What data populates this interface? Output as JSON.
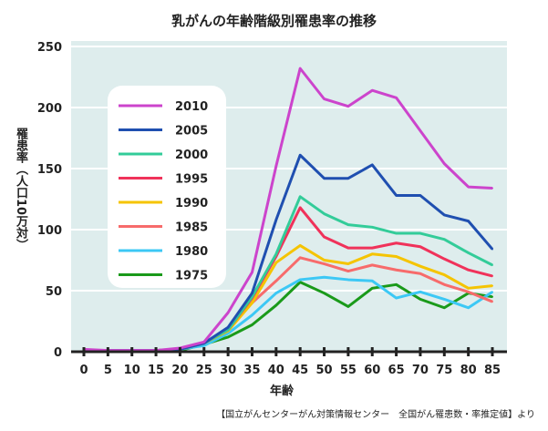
{
  "chart_data": {
    "type": "line",
    "title": "乳がんの年齢階級別罹患率の推移",
    "ylabel": "罹患率（人口10万対）",
    "xlabel": "年齢",
    "source": "【国立がんセンターがん対策情報センター　全国がん罹患数・率推定値】より",
    "x": [
      0,
      5,
      10,
      15,
      20,
      25,
      30,
      35,
      40,
      45,
      50,
      55,
      60,
      65,
      70,
      75,
      80,
      85
    ],
    "ylim": [
      0,
      250
    ],
    "yticks": [
      0,
      50,
      100,
      150,
      200,
      250
    ],
    "grid": true,
    "legend_position": "top-left",
    "background": "#deeded",
    "series": [
      {
        "name": "2010",
        "color": "#cc44cc",
        "values": [
          2,
          1,
          1,
          1,
          3,
          8,
          32,
          65,
          152,
          232,
          207,
          201,
          214,
          208,
          181,
          154,
          135,
          134
        ]
      },
      {
        "name": "2005",
        "color": "#1f4fb0",
        "values": [
          1,
          1,
          1,
          1,
          2,
          7,
          20,
          48,
          108,
          161,
          142,
          142,
          153,
          128,
          128,
          112,
          107,
          84
        ]
      },
      {
        "name": "2000",
        "color": "#33cc99",
        "values": [
          1,
          1,
          1,
          1,
          2,
          7,
          18,
          45,
          80,
          127,
          113,
          104,
          102,
          97,
          97,
          92,
          81,
          71
        ]
      },
      {
        "name": "1995",
        "color": "#f0325a",
        "values": [
          1,
          1,
          1,
          1,
          2,
          7,
          18,
          44,
          78,
          118,
          94,
          85,
          85,
          89,
          86,
          76,
          67,
          62
        ]
      },
      {
        "name": "1990",
        "color": "#f5c400",
        "values": [
          1,
          1,
          1,
          1,
          2,
          7,
          17,
          40,
          73,
          87,
          75,
          72,
          80,
          78,
          70,
          63,
          52,
          54
        ]
      },
      {
        "name": "1985",
        "color": "#f76b6b",
        "values": [
          1,
          1,
          1,
          1,
          2,
          7,
          18,
          40,
          58,
          77,
          72,
          66,
          71,
          67,
          64,
          55,
          49,
          41
        ]
      },
      {
        "name": "1980",
        "color": "#3cc8f5",
        "values": [
          0,
          1,
          1,
          1,
          2,
          5,
          15,
          30,
          48,
          59,
          61,
          59,
          58,
          44,
          49,
          43,
          36,
          49
        ]
      },
      {
        "name": "1975",
        "color": "#1a9a1a",
        "values": [
          0,
          0,
          0,
          0,
          1,
          6,
          12,
          22,
          38,
          57,
          48,
          37,
          52,
          55,
          43,
          36,
          48,
          45
        ]
      }
    ]
  }
}
